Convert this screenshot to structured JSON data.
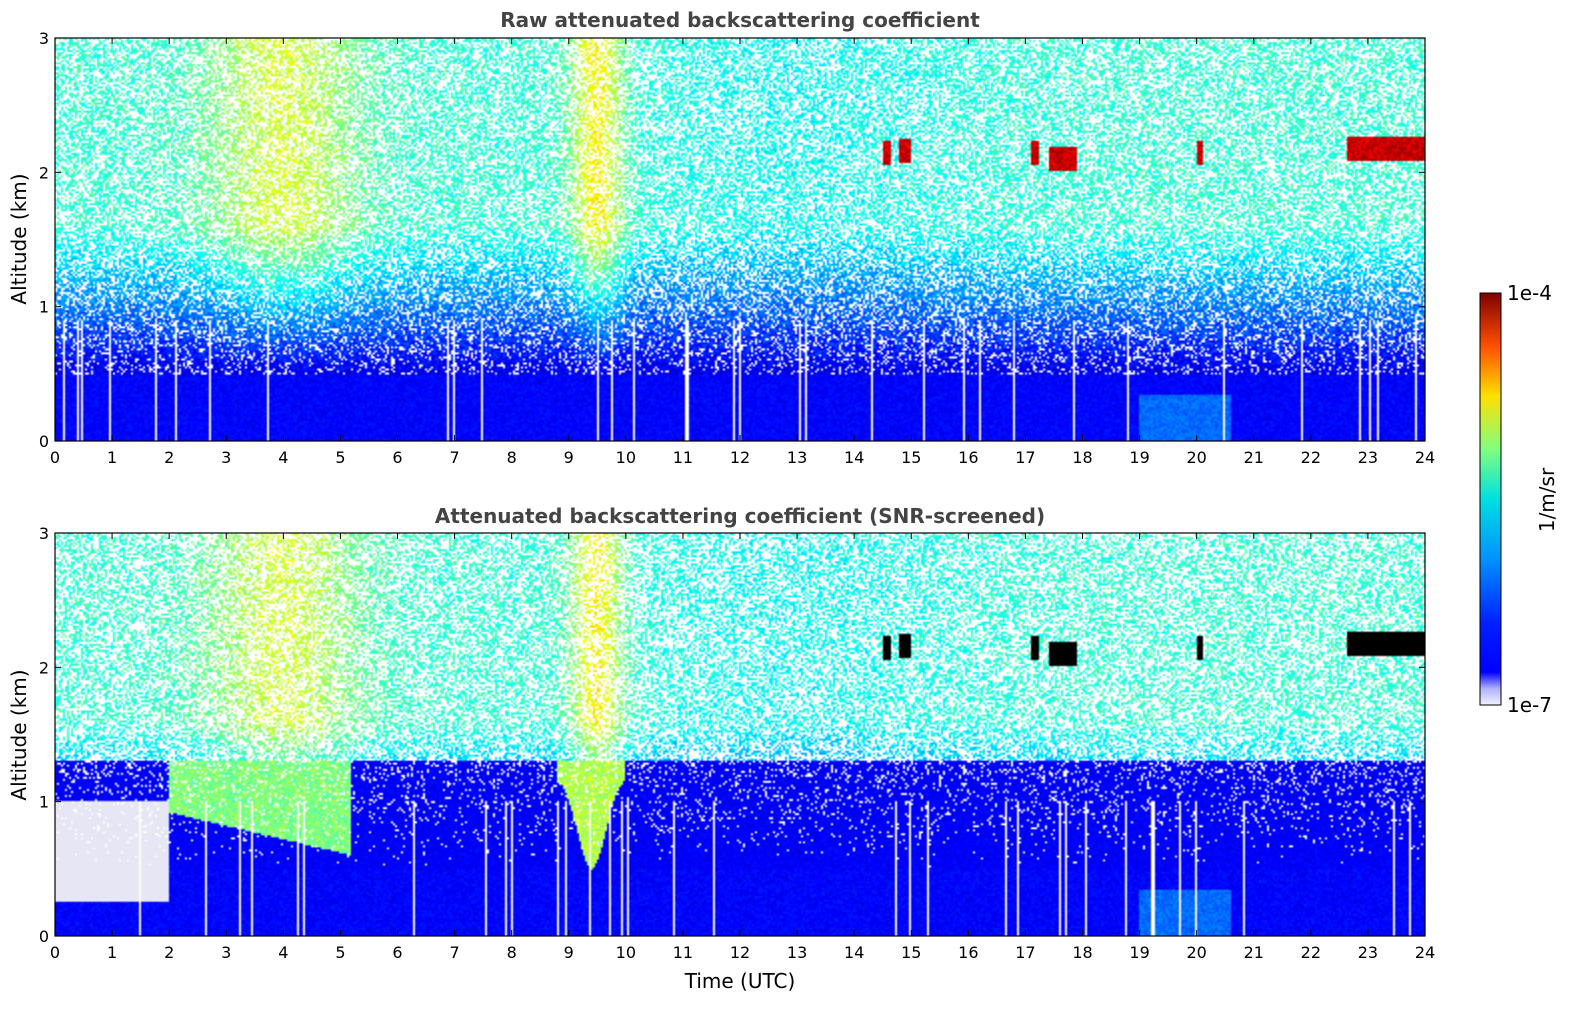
{
  "chart_data": [
    {
      "type": "heatmap",
      "title": "Raw attenuated backscattering coefficient",
      "xlabel": "",
      "ylabel": "Altitude (km)",
      "xlim": [
        0,
        24
      ],
      "ylim": [
        0,
        3
      ],
      "x_ticks": [
        "0",
        "1",
        "2",
        "3",
        "4",
        "5",
        "6",
        "7",
        "8",
        "9",
        "10",
        "11",
        "12",
        "13",
        "14",
        "15",
        "16",
        "17",
        "18",
        "19",
        "20",
        "21",
        "22",
        "23",
        "24"
      ],
      "y_ticks": [
        "0",
        "1",
        "2",
        "3"
      ],
      "screened": false,
      "cloud_layers": [
        {
          "t_start": 14.5,
          "t_end": 14.65,
          "alt_km": 2.15
        },
        {
          "t_start": 14.8,
          "t_end": 15.0,
          "alt_km": 2.16
        },
        {
          "t_start": 17.1,
          "t_end": 17.25,
          "alt_km": 2.15
        },
        {
          "t_start": 17.4,
          "t_end": 17.9,
          "alt_km": 2.1
        },
        {
          "t_start": 20.0,
          "t_end": 20.1,
          "alt_km": 2.15
        },
        {
          "t_start": 22.65,
          "t_end": 24.0,
          "alt_km": 2.17
        }
      ]
    },
    {
      "type": "heatmap",
      "title": "Attenuated backscattering coefficient (SNR-screened)",
      "xlabel": "Time (UTC)",
      "ylabel": "Altitude (km)",
      "xlim": [
        0,
        24
      ],
      "ylim": [
        0,
        3
      ],
      "x_ticks": [
        "0",
        "1",
        "2",
        "3",
        "4",
        "5",
        "6",
        "7",
        "8",
        "9",
        "10",
        "11",
        "12",
        "13",
        "14",
        "15",
        "16",
        "17",
        "18",
        "19",
        "20",
        "21",
        "22",
        "23",
        "24"
      ],
      "y_ticks": [
        "0",
        "1",
        "2",
        "3"
      ],
      "screened": true,
      "cloud_layers": [
        {
          "t_start": 14.5,
          "t_end": 14.65,
          "alt_km": 2.15
        },
        {
          "t_start": 14.8,
          "t_end": 15.0,
          "alt_km": 2.16
        },
        {
          "t_start": 17.1,
          "t_end": 17.25,
          "alt_km": 2.15
        },
        {
          "t_start": 17.4,
          "t_end": 17.9,
          "alt_km": 2.1
        },
        {
          "t_start": 20.0,
          "t_end": 20.1,
          "alt_km": 2.15
        },
        {
          "t_start": 22.65,
          "t_end": 24.0,
          "alt_km": 2.17
        }
      ]
    }
  ],
  "colorbar": {
    "label": "1/m/sr",
    "max_label": "1e-4",
    "min_label": "1e-7",
    "colormap": "jet"
  },
  "colors": {
    "title": "#444444",
    "axes": "#000000",
    "background": "#ffffff"
  }
}
